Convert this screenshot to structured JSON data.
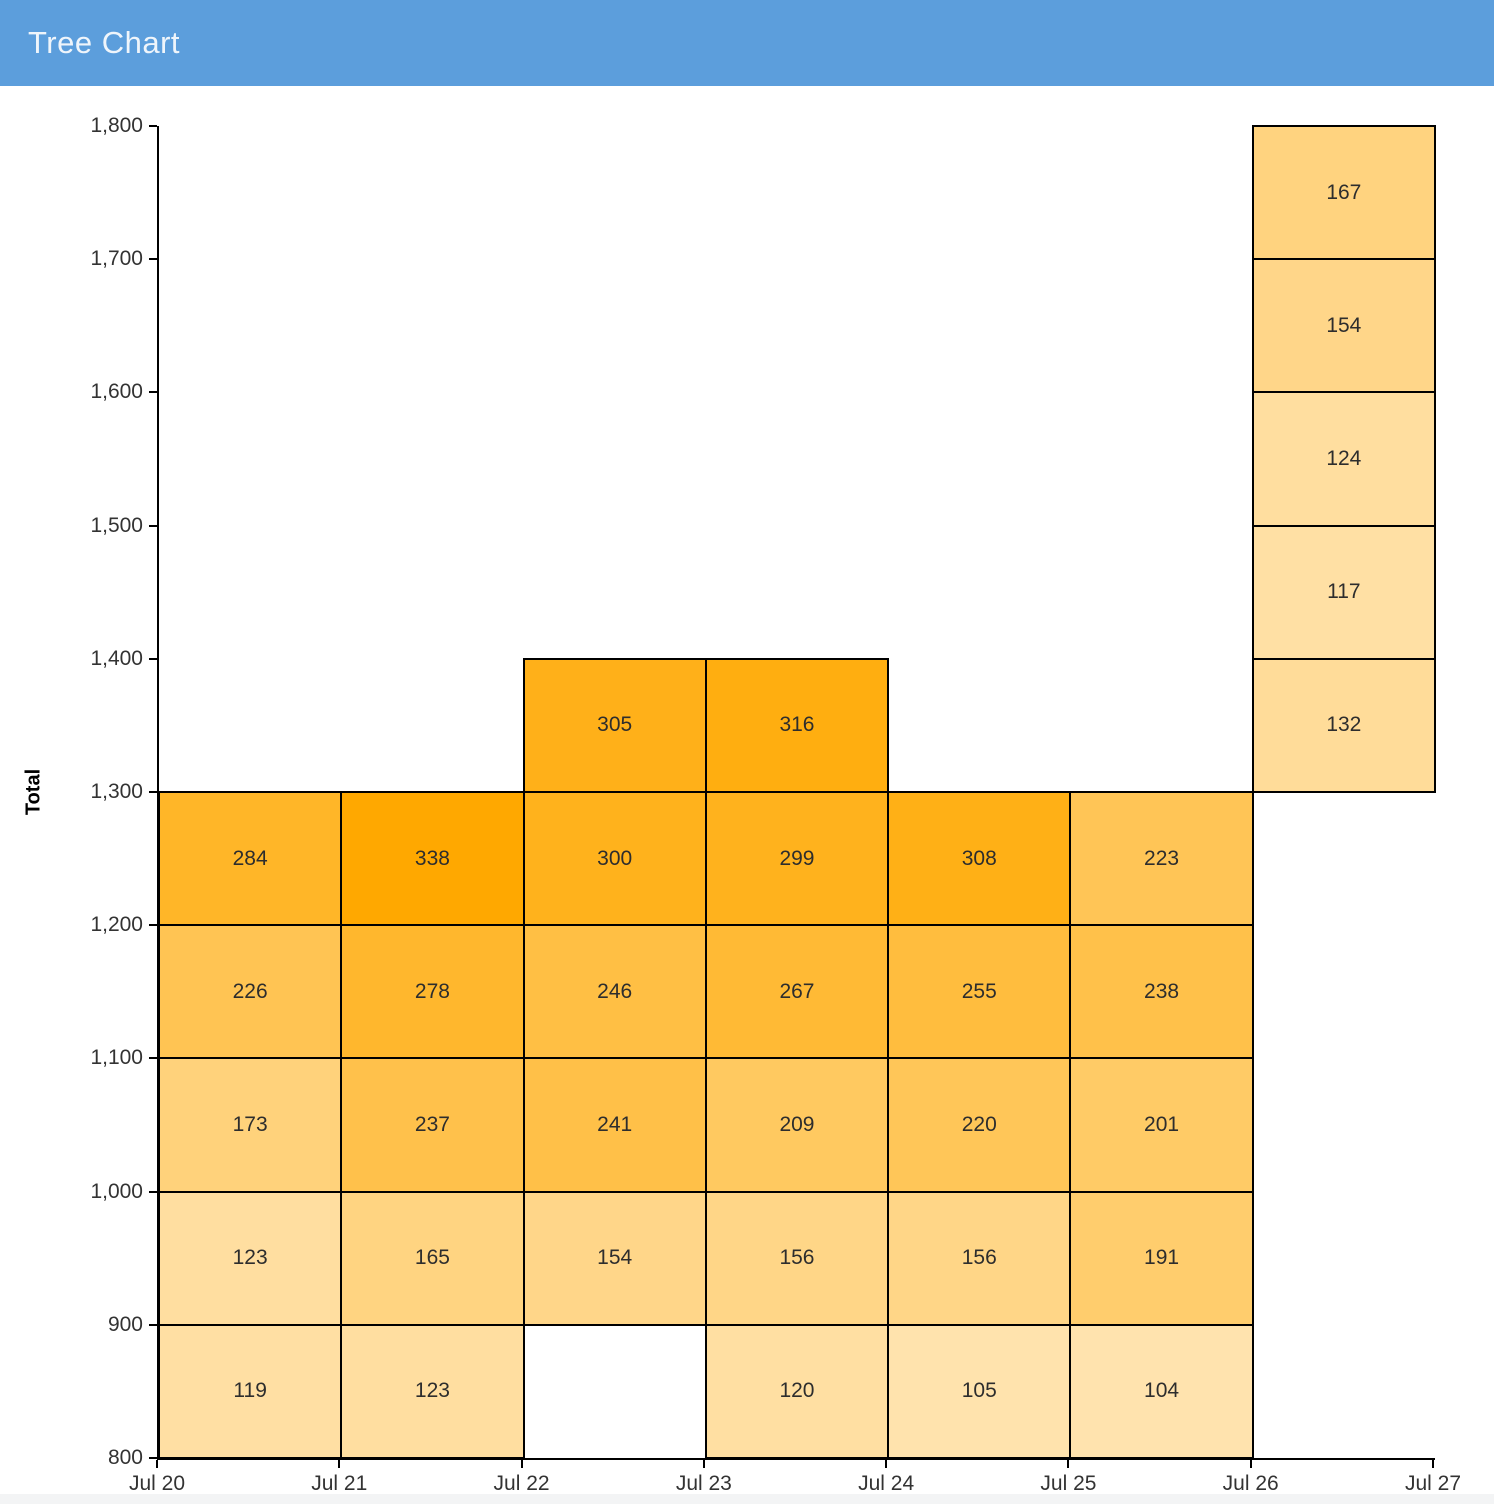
{
  "header": {
    "title": "Tree Chart"
  },
  "colors": {
    "header_bg": "#5C9EDC",
    "header_text": "#EFF5FB",
    "cell_min": "#FFE3AE",
    "cell_max": "#FFA800",
    "cell_border": "#000000",
    "cell_text": "#2D2D2D",
    "axis": "#000000",
    "tick_text": "#333333",
    "footer_strip": "#F3F4F5"
  },
  "chart_data": {
    "type": "heatmap",
    "title": "Tree Chart",
    "xlabel": "",
    "ylabel": "Total",
    "x_ticks": [
      "Jul 20",
      "Jul 21",
      "Jul 22",
      "Jul 23",
      "Jul 24",
      "Jul 25",
      "Jul 26",
      "Jul 27"
    ],
    "y_ticks": [
      "1,800",
      "1,700",
      "1,600",
      "1,500",
      "1,400",
      "1,300",
      "1,200",
      "1,100",
      "1,000",
      "900",
      "800"
    ],
    "y_range": [
      800,
      1800
    ],
    "bin_size": 100,
    "value_range": [
      104,
      338
    ],
    "grid_on": false,
    "legend": "none",
    "columns": [
      {
        "date": "Jul 20",
        "cells": [
          {
            "y0": 800,
            "value": 119
          },
          {
            "y0": 900,
            "value": 123
          },
          {
            "y0": 1000,
            "value": 173
          },
          {
            "y0": 1100,
            "value": 226
          },
          {
            "y0": 1200,
            "value": 284
          }
        ]
      },
      {
        "date": "Jul 21",
        "cells": [
          {
            "y0": 800,
            "value": 123
          },
          {
            "y0": 900,
            "value": 165
          },
          {
            "y0": 1000,
            "value": 237
          },
          {
            "y0": 1100,
            "value": 278
          },
          {
            "y0": 1200,
            "value": 338
          }
        ]
      },
      {
        "date": "Jul 22",
        "cells": [
          {
            "y0": 900,
            "value": 154
          },
          {
            "y0": 1000,
            "value": 241
          },
          {
            "y0": 1100,
            "value": 246
          },
          {
            "y0": 1200,
            "value": 300
          },
          {
            "y0": 1300,
            "value": 305
          }
        ]
      },
      {
        "date": "Jul 23",
        "cells": [
          {
            "y0": 800,
            "value": 120
          },
          {
            "y0": 900,
            "value": 156
          },
          {
            "y0": 1000,
            "value": 209
          },
          {
            "y0": 1100,
            "value": 267
          },
          {
            "y0": 1200,
            "value": 299
          },
          {
            "y0": 1300,
            "value": 316
          }
        ]
      },
      {
        "date": "Jul 24",
        "cells": [
          {
            "y0": 800,
            "value": 105
          },
          {
            "y0": 900,
            "value": 156
          },
          {
            "y0": 1000,
            "value": 220
          },
          {
            "y0": 1100,
            "value": 255
          },
          {
            "y0": 1200,
            "value": 308
          }
        ]
      },
      {
        "date": "Jul 25",
        "cells": [
          {
            "y0": 800,
            "value": 104
          },
          {
            "y0": 900,
            "value": 191
          },
          {
            "y0": 1000,
            "value": 201
          },
          {
            "y0": 1100,
            "value": 238
          },
          {
            "y0": 1200,
            "value": 223
          }
        ]
      },
      {
        "date": "Jul 26",
        "cells": [
          {
            "y0": 1300,
            "value": 132
          },
          {
            "y0": 1400,
            "value": 117
          },
          {
            "y0": 1500,
            "value": 124
          },
          {
            "y0": 1600,
            "value": 154
          },
          {
            "y0": 1700,
            "value": 167
          }
        ]
      }
    ]
  }
}
